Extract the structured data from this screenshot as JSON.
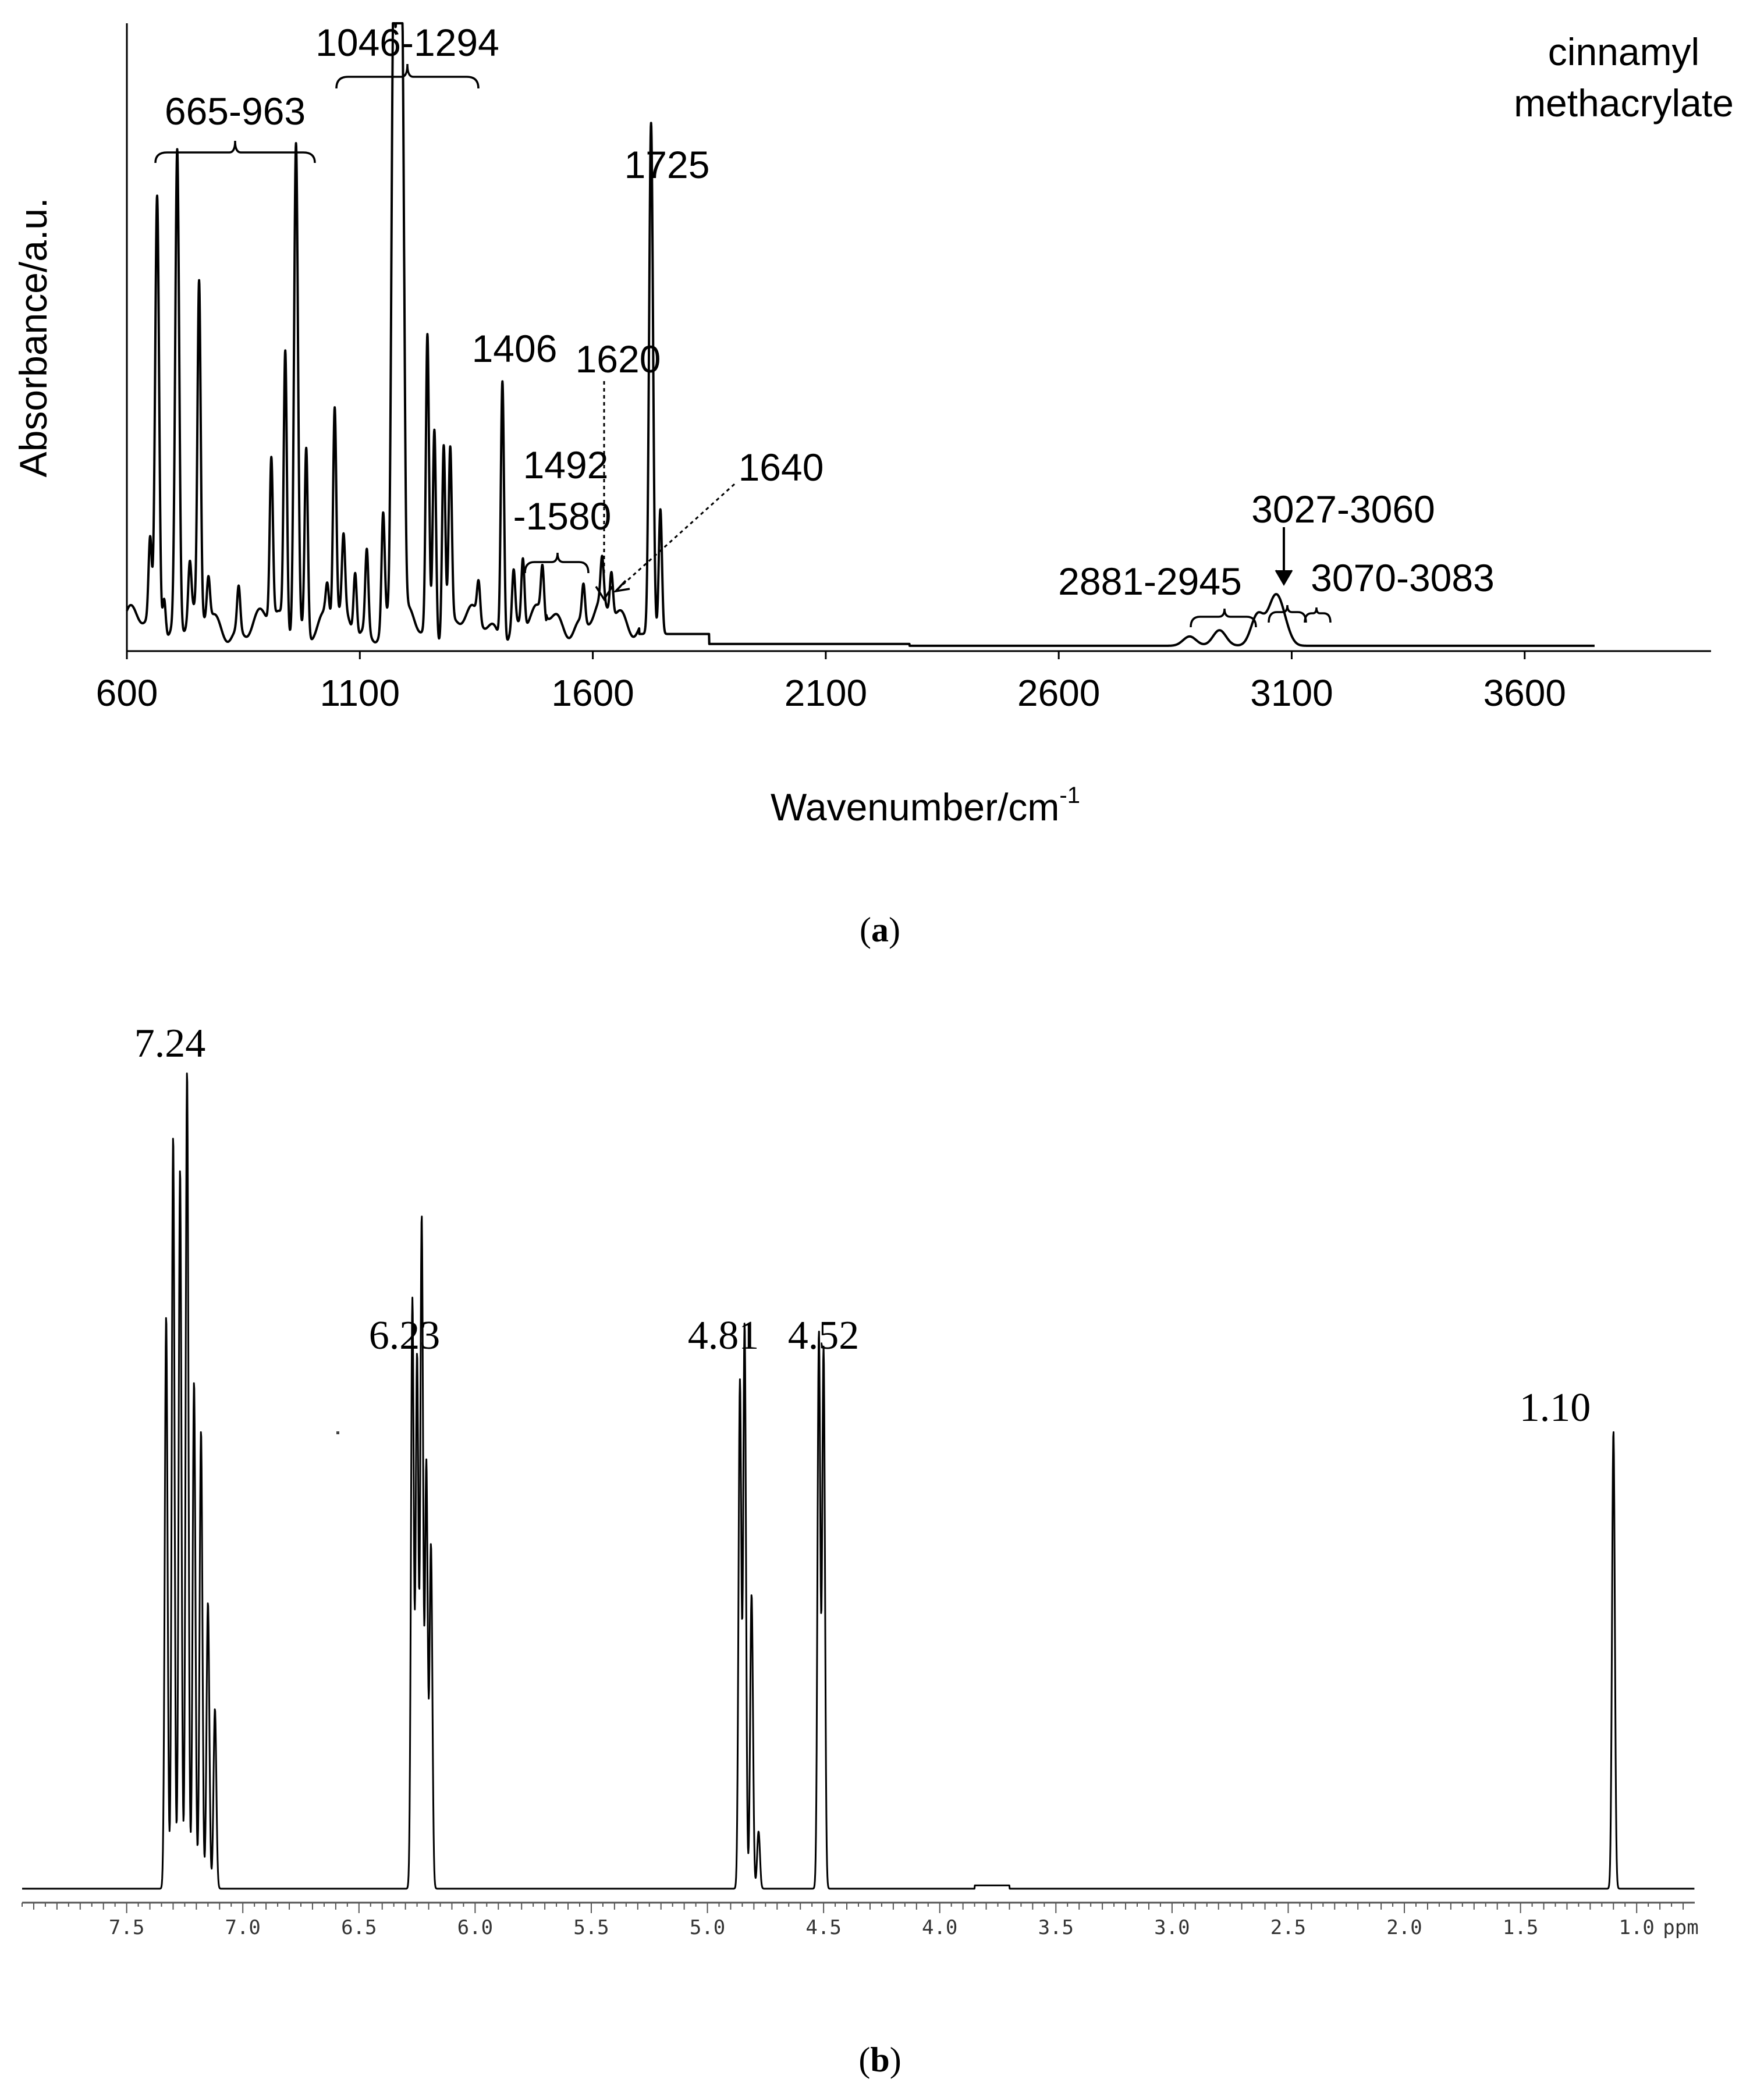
{
  "chart_data": [
    {
      "type": "line",
      "title": "cinnamyl methacrylate",
      "xlabel": "Wavenumber/cm",
      "xlabel_sup": "-1",
      "ylabel": "Absorbance/a.u.",
      "xlim": [
        600,
        4000
      ],
      "ylim": [
        0,
        1.0
      ],
      "x_ticks": [
        "600",
        "1100",
        "1600",
        "2100",
        "2600",
        "3100",
        "3600"
      ],
      "x_tick_values": [
        600,
        1100,
        1600,
        2100,
        2600,
        3100,
        3600
      ],
      "grid": false,
      "peaks": [
        {
          "x": 650,
          "y": 0.13
        },
        {
          "x": 665,
          "y": 0.7
        },
        {
          "x": 680,
          "y": 0.07
        },
        {
          "x": 708,
          "y": 0.77
        },
        {
          "x": 735,
          "y": 0.09
        },
        {
          "x": 755,
          "y": 0.53
        },
        {
          "x": 775,
          "y": 0.07
        },
        {
          "x": 840,
          "y": 0.07
        },
        {
          "x": 910,
          "y": 0.26
        },
        {
          "x": 940,
          "y": 0.44
        },
        {
          "x": 963,
          "y": 0.79
        },
        {
          "x": 985,
          "y": 0.3
        },
        {
          "x": 1030,
          "y": 0.05
        },
        {
          "x": 1046,
          "y": 0.34
        },
        {
          "x": 1065,
          "y": 0.12
        },
        {
          "x": 1090,
          "y": 0.1
        },
        {
          "x": 1115,
          "y": 0.13
        },
        {
          "x": 1150,
          "y": 0.18
        },
        {
          "x": 1172,
          "y": 0.95
        },
        {
          "x": 1182,
          "y": 0.98
        },
        {
          "x": 1191,
          "y": 0.9
        },
        {
          "x": 1245,
          "y": 0.47
        },
        {
          "x": 1260,
          "y": 0.33
        },
        {
          "x": 1280,
          "y": 0.31
        },
        {
          "x": 1294,
          "y": 0.28
        },
        {
          "x": 1355,
          "y": 0.06
        },
        {
          "x": 1406,
          "y": 0.42
        },
        {
          "x": 1430,
          "y": 0.09
        },
        {
          "x": 1450,
          "y": 0.11
        },
        {
          "x": 1492,
          "y": 0.08
        },
        {
          "x": 1580,
          "y": 0.06
        },
        {
          "x": 1620,
          "y": 0.07
        },
        {
          "x": 1640,
          "y": 0.07
        },
        {
          "x": 1725,
          "y": 0.82
        },
        {
          "x": 1745,
          "y": 0.2
        },
        {
          "x": 2881,
          "y": 0.015
        },
        {
          "x": 2945,
          "y": 0.025
        },
        {
          "x": 3027,
          "y": 0.05
        },
        {
          "x": 3060,
          "y": 0.045
        },
        {
          "x": 3070,
          "y": 0.03
        },
        {
          "x": 3083,
          "y": 0.025
        }
      ],
      "annotations": [
        "665-963",
        "1046-1294",
        "1406",
        "1620",
        "1725",
        "1492",
        "-1580",
        "1640",
        "3027-3060",
        "2881-2945",
        "3070-3083"
      ]
    },
    {
      "type": "line",
      "xlabel": "ppm",
      "xlim": [
        7.95,
        0.75
      ],
      "x_reversed": true,
      "x_ticks": [
        "7.5",
        "7.0",
        "6.5",
        "6.0",
        "5.5",
        "5.0",
        "4.5",
        "4.0",
        "3.5",
        "3.0",
        "2.5",
        "2.0",
        "1.5",
        "1.0"
      ],
      "x_tick_values": [
        7.5,
        7.0,
        6.5,
        6.0,
        5.5,
        5.0,
        4.5,
        4.0,
        3.5,
        3.0,
        2.5,
        2.0,
        1.5,
        1.0
      ],
      "peaks": [
        {
          "x": 7.33,
          "y": 0.7
        },
        {
          "x": 7.3,
          "y": 0.92
        },
        {
          "x": 7.27,
          "y": 0.88
        },
        {
          "x": 7.24,
          "y": 1.0
        },
        {
          "x": 7.21,
          "y": 0.62
        },
        {
          "x": 7.18,
          "y": 0.56
        },
        {
          "x": 7.15,
          "y": 0.35
        },
        {
          "x": 7.12,
          "y": 0.22
        },
        {
          "x": 6.27,
          "y": 0.72
        },
        {
          "x": 6.25,
          "y": 0.65
        },
        {
          "x": 6.23,
          "y": 0.82
        },
        {
          "x": 6.21,
          "y": 0.52
        },
        {
          "x": 6.19,
          "y": 0.42
        },
        {
          "x": 4.86,
          "y": 0.62
        },
        {
          "x": 4.84,
          "y": 0.69
        },
        {
          "x": 4.81,
          "y": 0.36
        },
        {
          "x": 4.78,
          "y": 0.07
        },
        {
          "x": 4.52,
          "y": 0.68
        },
        {
          "x": 4.5,
          "y": 0.66
        },
        {
          "x": 1.1,
          "y": 0.56
        }
      ],
      "annotations": [
        "7.24",
        "6.23",
        "4.81",
        "4.52",
        "1.10"
      ]
    }
  ],
  "captions": {
    "a": "a",
    "b": "b"
  }
}
